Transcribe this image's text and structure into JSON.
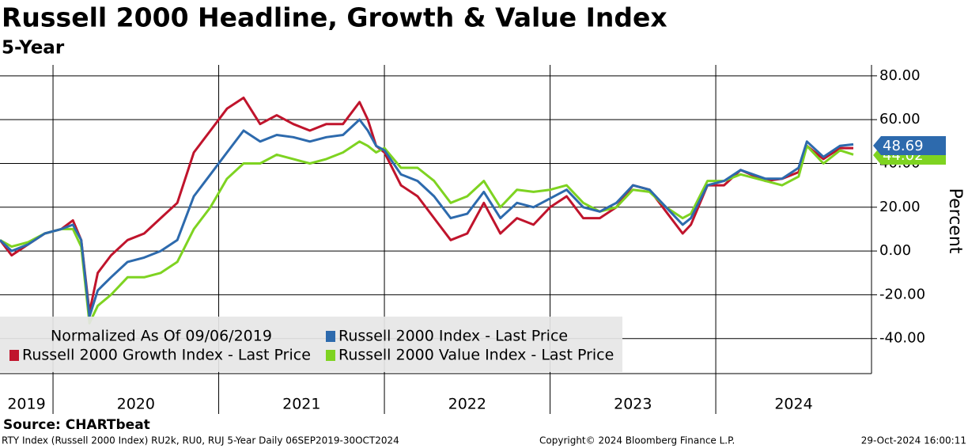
{
  "chart_data": {
    "type": "line",
    "title": "Russell 2000 Headline, Growth & Value Index",
    "subtitle": "5-Year",
    "y_axis_label": "Percent",
    "legend_title": "Normalized As Of 09/06/2019",
    "source": "Source: CHARTbeat",
    "footer_left": "RTY Index (Russell 2000 Index) RU2k, RU0, RUJ 5-Year  Daily 06SEP2019-30OCT2024",
    "footer_center": "Copyright© 2024 Bloomberg Finance L.P.",
    "footer_right": "29-Oct-2024 16:00:11",
    "x": [
      2019.68,
      2019.75,
      2019.85,
      2019.95,
      2020.05,
      2020.12,
      2020.17,
      2020.22,
      2020.27,
      2020.35,
      2020.45,
      2020.55,
      2020.65,
      2020.75,
      2020.85,
      2020.95,
      2021.05,
      2021.15,
      2021.25,
      2021.35,
      2021.45,
      2021.55,
      2021.65,
      2021.75,
      2021.85,
      2021.9,
      2021.95,
      2022.0,
      2022.1,
      2022.2,
      2022.3,
      2022.4,
      2022.5,
      2022.6,
      2022.7,
      2022.8,
      2022.9,
      2023.0,
      2023.1,
      2023.2,
      2023.3,
      2023.4,
      2023.5,
      2023.6,
      2023.7,
      2023.8,
      2023.85,
      2023.95,
      2024.05,
      2024.15,
      2024.3,
      2024.4,
      2024.5,
      2024.55,
      2024.65,
      2024.75,
      2024.83
    ],
    "series": [
      {
        "name": "Russell 2000 Index - Last Price",
        "color": "#2d6aad",
        "values": [
          5,
          0,
          3,
          8,
          10,
          12,
          5,
          -30,
          -18,
          -12,
          -5,
          -3,
          0,
          5,
          25,
          35,
          45,
          55,
          50,
          53,
          52,
          50,
          52,
          53,
          60,
          55,
          48,
          46,
          35,
          32,
          25,
          15,
          17,
          27,
          15,
          22,
          20,
          24,
          28,
          20,
          18,
          22,
          30,
          28,
          20,
          12,
          15,
          30,
          32,
          37,
          33,
          33,
          38,
          50,
          43,
          48,
          48.69
        ]
      },
      {
        "name": "Russell 2000 Growth Index - Last Price",
        "color": "#c0142c",
        "values": [
          5,
          -2,
          3,
          8,
          10,
          14,
          5,
          -28,
          -10,
          -2,
          5,
          8,
          15,
          22,
          45,
          55,
          65,
          70,
          58,
          62,
          58,
          55,
          58,
          58,
          68,
          60,
          48,
          45,
          30,
          25,
          15,
          5,
          8,
          22,
          8,
          15,
          12,
          20,
          25,
          15,
          15,
          20,
          30,
          28,
          18,
          8,
          12,
          30,
          30,
          37,
          32,
          33,
          36,
          48,
          42,
          47,
          47
        ]
      },
      {
        "name": "Russell 2000 Value Index - Last Price",
        "color": "#7ed321",
        "values": [
          5,
          2,
          4,
          8,
          10,
          10,
          2,
          -33,
          -25,
          -20,
          -12,
          -12,
          -10,
          -5,
          10,
          20,
          33,
          40,
          40,
          44,
          42,
          40,
          42,
          45,
          50,
          48,
          45,
          47,
          38,
          38,
          32,
          22,
          25,
          32,
          20,
          28,
          27,
          28,
          30,
          22,
          18,
          20,
          28,
          27,
          20,
          15,
          17,
          32,
          32,
          35,
          32,
          30,
          34,
          48,
          40,
          46,
          44.02
        ]
      }
    ],
    "xlim": [
      2019.68,
      2024.94
    ],
    "xticks": [
      2020,
      2021,
      2022,
      2023,
      2024
    ],
    "year_labels": [
      "2019",
      "2020",
      "2021",
      "2022",
      "2023",
      "2024"
    ],
    "ylim": [
      -56,
      85
    ],
    "yticks": [
      {
        "value": -40,
        "label": "-40.00"
      },
      {
        "value": -20,
        "label": "-20.00"
      },
      {
        "value": 0,
        "label": "0.00"
      },
      {
        "value": 20,
        "label": "20.00"
      },
      {
        "value": 40,
        "label": "40.00"
      },
      {
        "value": 60,
        "label": "60.00"
      },
      {
        "value": 80,
        "label": "80.00"
      }
    ],
    "grid": true
  }
}
